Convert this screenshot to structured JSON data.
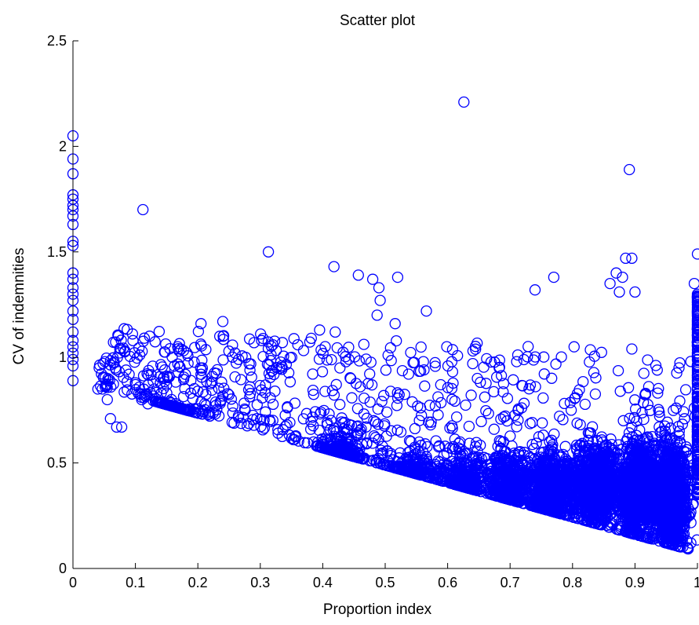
{
  "chart_data": {
    "type": "scatter",
    "title": "Scatter plot",
    "xlabel": "Proportion index",
    "ylabel": "CV of indemnities",
    "xlim": [
      0,
      1
    ],
    "ylim": [
      0,
      2.5
    ],
    "xticks": [
      0,
      0.1,
      0.2,
      0.3,
      0.4,
      0.5,
      0.6,
      0.7,
      0.8,
      0.9,
      1
    ],
    "xtick_labels": [
      "0",
      "0.1",
      "0.2",
      "0.3",
      "0.4",
      "0.5",
      "0.6",
      "0.7",
      "0.8",
      "0.9",
      "1"
    ],
    "yticks": [
      0,
      0.5,
      1,
      1.5,
      2,
      2.5
    ],
    "ytick_labels": [
      "0",
      "0.5",
      "1",
      "1.5",
      "2",
      "2.5"
    ],
    "grid": false,
    "marker": "circle-open",
    "marker_color": "#0000ff",
    "series": [
      {
        "points": [
          [
            0,
            2.05
          ],
          [
            0,
            1.94
          ],
          [
            0,
            1.87
          ],
          [
            0,
            1.77
          ],
          [
            0,
            1.75
          ],
          [
            0,
            1.72
          ],
          [
            0,
            1.7
          ],
          [
            0,
            1.67
          ],
          [
            0,
            1.63
          ],
          [
            0,
            1.55
          ],
          [
            0,
            1.53
          ],
          [
            0,
            1.4
          ],
          [
            0,
            1.37
          ],
          [
            0,
            1.33
          ],
          [
            0,
            1.3
          ],
          [
            0,
            1.27
          ],
          [
            0,
            1.22
          ],
          [
            0,
            1.18
          ],
          [
            0,
            1.12
          ],
          [
            0,
            1.08
          ],
          [
            0,
            1.05
          ],
          [
            0,
            1.02
          ],
          [
            0,
            0.99
          ],
          [
            0,
            0.96
          ],
          [
            0,
            0.89
          ],
          [
            0.112,
            1.7
          ],
          [
            0.313,
            1.5
          ],
          [
            0.626,
            2.21
          ],
          [
            0.891,
            1.89
          ],
          [
            0.418,
            1.43
          ],
          [
            0.457,
            1.39
          ],
          [
            0.48,
            1.37
          ],
          [
            0.49,
            1.33
          ],
          [
            0.52,
            1.38
          ],
          [
            0.492,
            1.27
          ],
          [
            0.566,
            1.22
          ],
          [
            0.516,
            1.16
          ],
          [
            0.487,
            1.2
          ],
          [
            0.205,
            1.16
          ],
          [
            0.24,
            1.17
          ],
          [
            0.235,
            1.1
          ],
          [
            0.17,
            1.03
          ],
          [
            0.29,
            1.07
          ],
          [
            0.32,
            1.06
          ],
          [
            0.36,
            1.06
          ],
          [
            0.395,
            1.13
          ],
          [
            0.42,
            1.12
          ],
          [
            0.74,
            1.32
          ],
          [
            0.77,
            1.38
          ],
          [
            0.88,
            1.38
          ],
          [
            0.885,
            1.47
          ],
          [
            0.895,
            1.47
          ],
          [
            0.875,
            1.31
          ],
          [
            0.9,
            1.31
          ],
          [
            0.86,
            1.35
          ],
          [
            0.87,
            1.4
          ],
          [
            1.0,
            1.49
          ],
          [
            0.995,
            1.35
          ],
          [
            0.04,
            0.85
          ],
          [
            0.047,
            0.85
          ],
          [
            0.055,
            0.8
          ],
          [
            0.06,
            0.71
          ],
          [
            0.07,
            0.67
          ],
          [
            0.078,
            0.67
          ],
          [
            0.085,
            0.94
          ],
          [
            0.09,
            0.92
          ],
          [
            0.1,
            0.88
          ],
          [
            0.11,
            0.8
          ],
          [
            0.12,
            0.78
          ],
          [
            0.13,
            0.85
          ],
          [
            0.14,
            0.88
          ],
          [
            0.15,
            0.87
          ],
          [
            0.18,
            0.92
          ],
          [
            0.2,
            0.84
          ],
          [
            0.205,
            0.92
          ]
        ]
      }
    ]
  }
}
